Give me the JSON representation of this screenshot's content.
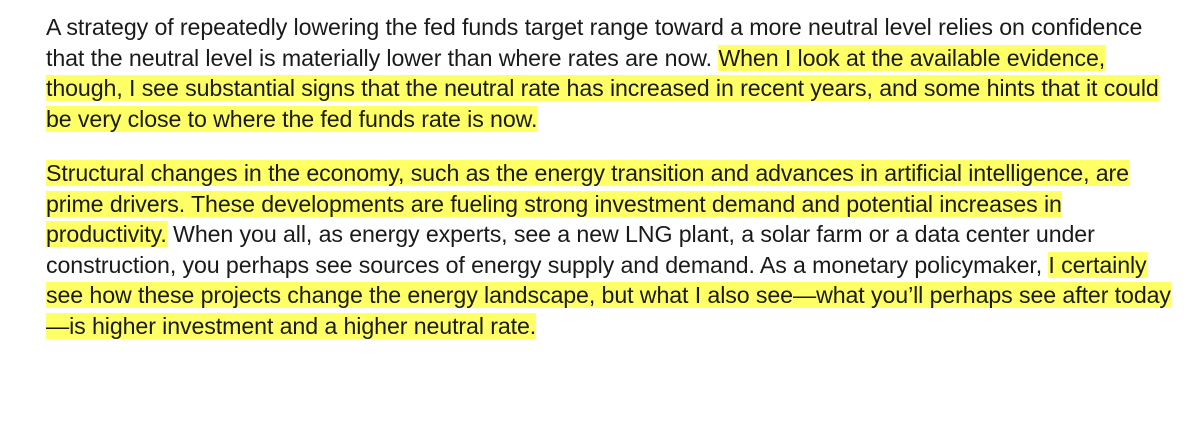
{
  "document": {
    "paragraph1": {
      "plain": "A strategy of repeatedly lowering the fed funds target range toward a more neutral level relies on confidence that the neutral level is materially lower than where rates are now. ",
      "highlighted": "When I look at the available evidence, though, I see substantial signs that the neutral rate has increased in recent years, and some hints that it could be very close to where the fed funds rate is now."
    },
    "paragraph2": {
      "highlighted1": "Structural changes in the economy, such as the energy transition and advances in artificial intelligence, are prime drivers. These developments are fueling strong investment demand and potential increases in productivity.",
      "plain": " When you all, as energy experts, see a new LNG plant, a solar farm or a data center under construction, you perhaps see sources of energy supply and demand. As a monetary policymaker, ",
      "highlighted2": "I certainly see how these projects change the energy landscape, but what I also see—what you’ll perhaps see after today—is higher investment and a higher neutral rate."
    }
  },
  "colors": {
    "highlight": "#ffff66",
    "text": "#1a1a1a",
    "background": "#ffffff"
  }
}
